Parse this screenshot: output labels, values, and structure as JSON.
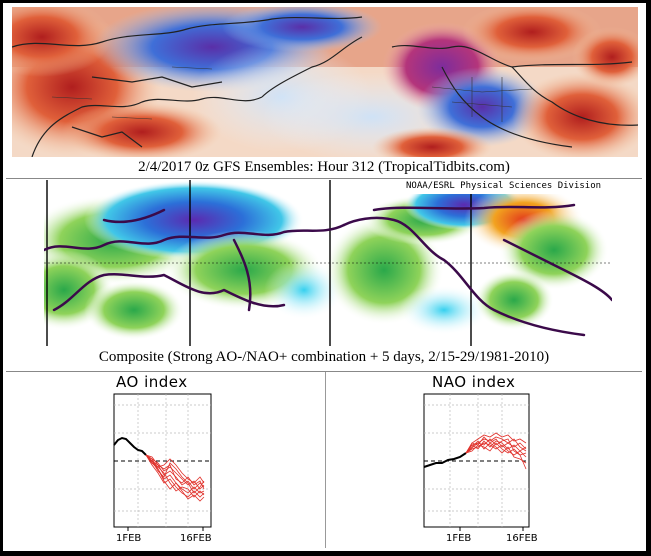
{
  "caption_top": "2/4/2017 0z GFS Ensembles: Hour 312 (TropicalTidbits.com)",
  "caption_middle": "Composite (Strong AO-/NAO+ combination + 5 days, 2/15-29/1981-2010)",
  "composite_credit": "NOAA/ESRL Physical Sciences Division",
  "ao_title": "AO index",
  "nao_title": "NAO index",
  "ao_ticks": [
    "1FEB",
    "16FEB"
  ],
  "nao_ticks": [
    "1FEB",
    "16FEB"
  ],
  "colors": {
    "warm": "#c0392b",
    "cold": "#3b5bdb",
    "deep_cold": "#6a2ca8",
    "observed_line": "#000000",
    "ensemble_lines": "#e0302a"
  }
}
